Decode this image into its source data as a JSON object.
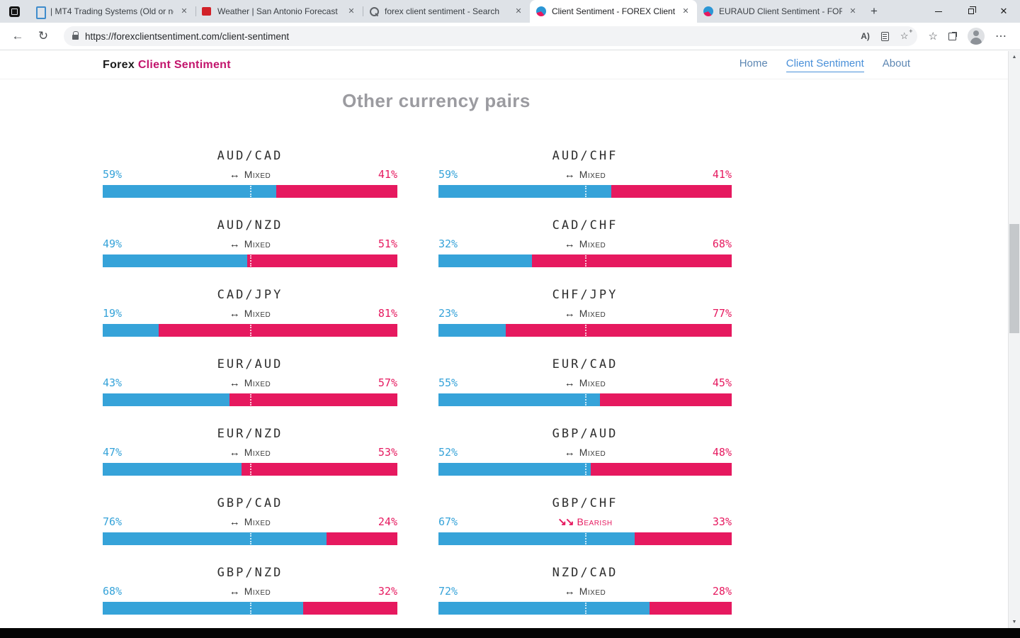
{
  "browser": {
    "tabs": [
      {
        "title": "| MT4 Trading Systems (Old or ne",
        "icon": "phone-favicon",
        "active": false
      },
      {
        "title": "Weather | San Antonio Forecast",
        "icon": "fox-favicon",
        "active": false
      },
      {
        "title": "forex client sentiment - Search",
        "icon": "search-favicon",
        "active": false
      },
      {
        "title": "Client Sentiment - FOREX Client",
        "icon": "sentiment-favicon",
        "active": true
      },
      {
        "title": "EURAUD Client Sentiment - FOR",
        "icon": "sentiment-favicon",
        "active": false
      }
    ],
    "url": "https://forexclientsentiment.com/client-sentiment"
  },
  "icons": {
    "tab_close": "✕",
    "new_tab": "+",
    "window_close": "✕",
    "back": "←",
    "refresh": "↻",
    "read_aloud": "A)",
    "favorites_add_star": "☆",
    "favorites_star": "☆",
    "more": "⋯",
    "scroll_up": "▲",
    "scroll_down": "▼",
    "mixed": "↔",
    "bearish": "↘↘"
  },
  "site": {
    "brand": {
      "forex": "Forex",
      "rest": "Client Sentiment"
    },
    "nav": [
      {
        "label": "Home",
        "active": false
      },
      {
        "label": "Client Sentiment",
        "active": true
      },
      {
        "label": "About",
        "active": false
      }
    ],
    "section_title": "Other currency pairs"
  },
  "pairs": [
    {
      "name": "AUD/CAD",
      "long": 59,
      "short": 41,
      "long_label": "59%",
      "short_label": "41%",
      "sentiment": "Mixed"
    },
    {
      "name": "AUD/CHF",
      "long": 59,
      "short": 41,
      "long_label": "59%",
      "short_label": "41%",
      "sentiment": "Mixed"
    },
    {
      "name": "AUD/NZD",
      "long": 49,
      "short": 51,
      "long_label": "49%",
      "short_label": "51%",
      "sentiment": "Mixed"
    },
    {
      "name": "CAD/CHF",
      "long": 32,
      "short": 68,
      "long_label": "32%",
      "short_label": "68%",
      "sentiment": "Mixed"
    },
    {
      "name": "CAD/JPY",
      "long": 19,
      "short": 81,
      "long_label": "19%",
      "short_label": "81%",
      "sentiment": "Mixed"
    },
    {
      "name": "CHF/JPY",
      "long": 23,
      "short": 77,
      "long_label": "23%",
      "short_label": "77%",
      "sentiment": "Mixed"
    },
    {
      "name": "EUR/AUD",
      "long": 43,
      "short": 57,
      "long_label": "43%",
      "short_label": "57%",
      "sentiment": "Mixed"
    },
    {
      "name": "EUR/CAD",
      "long": 55,
      "short": 45,
      "long_label": "55%",
      "short_label": "45%",
      "sentiment": "Mixed"
    },
    {
      "name": "EUR/NZD",
      "long": 47,
      "short": 53,
      "long_label": "47%",
      "short_label": "53%",
      "sentiment": "Mixed"
    },
    {
      "name": "GBP/AUD",
      "long": 52,
      "short": 48,
      "long_label": "52%",
      "short_label": "48%",
      "sentiment": "Mixed"
    },
    {
      "name": "GBP/CAD",
      "long": 76,
      "short": 24,
      "long_label": "76%",
      "short_label": "24%",
      "sentiment": "Mixed"
    },
    {
      "name": "GBP/CHF",
      "long": 67,
      "short": 33,
      "long_label": "67%",
      "short_label": "33%",
      "sentiment": "Bearish"
    },
    {
      "name": "GBP/NZD",
      "long": 68,
      "short": 32,
      "long_label": "68%",
      "short_label": "32%",
      "sentiment": "Mixed"
    },
    {
      "name": "NZD/CAD",
      "long": 72,
      "short": 28,
      "long_label": "72%",
      "short_label": "28%",
      "sentiment": "Mixed"
    }
  ],
  "colors": {
    "long_blue": "#36a3d9",
    "short_pink": "#e6195f",
    "brand_magenta": "#c2146c",
    "nav_active_blue": "#4a90d9",
    "section_title_gray": "#9b9ba0"
  }
}
